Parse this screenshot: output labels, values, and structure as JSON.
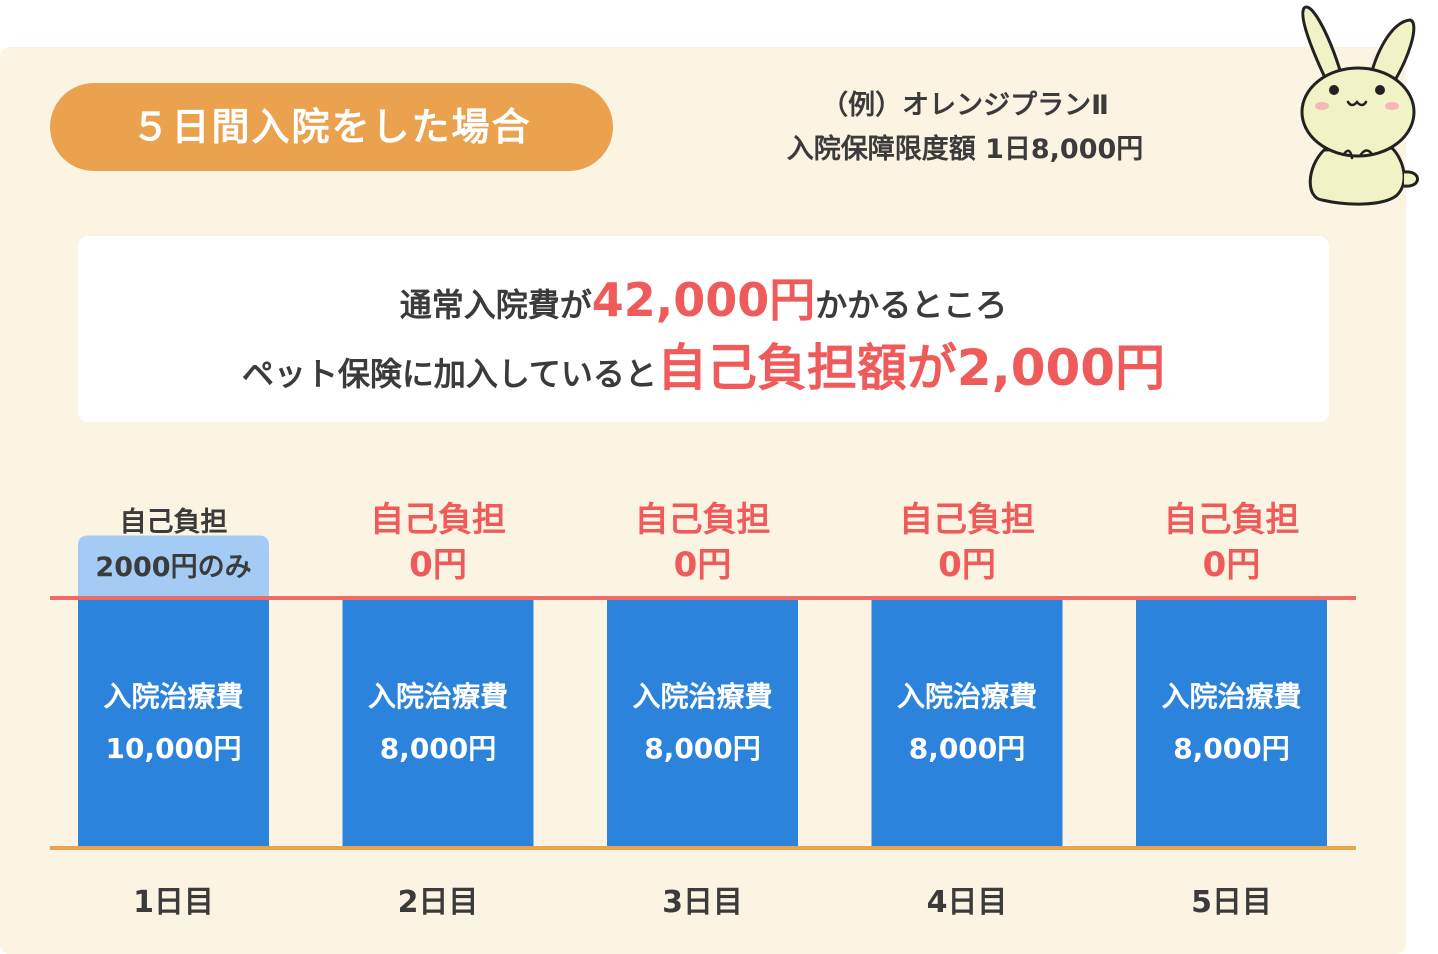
{
  "header": {
    "title": "５日間入院をした場合",
    "plan_line1": "（例）オレンジプランⅡ",
    "plan_line2": "入院保障限度額 1日8,000円"
  },
  "message": {
    "line1_pre": "通常入院費が",
    "line1_amount": "42,000円",
    "line1_post": "かかるところ",
    "line2_pre": "ペット保険に加入していると",
    "line2_emph": "自己負担額が2,000円"
  },
  "colors": {
    "bar": "#2b83dc",
    "self_pay_bar": "#a3cbf3",
    "limit_line": "#f06a6a",
    "baseline": "#eba24f",
    "accent_text": "#ef5a5a"
  },
  "chart_data": {
    "type": "bar",
    "stacked": true,
    "categories": [
      "1日目",
      "2日目",
      "3日目",
      "4日目",
      "5日目"
    ],
    "series": [
      {
        "values": [
          8000,
          8000,
          8000,
          8000,
          8000
        ]
      },
      {
        "values": [
          2000,
          0,
          0,
          0,
          0
        ]
      }
    ],
    "bar_label_title": [
      "入院治療費",
      "入院治療費",
      "入院治療費",
      "入院治療費",
      "入院治療費"
    ],
    "bar_label_amount": [
      "10,000円",
      "8,000円",
      "8,000円",
      "8,000円",
      "8,000円"
    ],
    "self_pay_label_title": [
      "自己負担",
      "自己負担",
      "自己負担",
      "自己負担",
      "自己負担"
    ],
    "self_pay_label_amount": [
      "2000円のみ",
      "0円",
      "0円",
      "0円",
      "0円"
    ],
    "limit_line_value": 8000,
    "ylim": [
      0,
      10000
    ],
    "grid": false
  }
}
